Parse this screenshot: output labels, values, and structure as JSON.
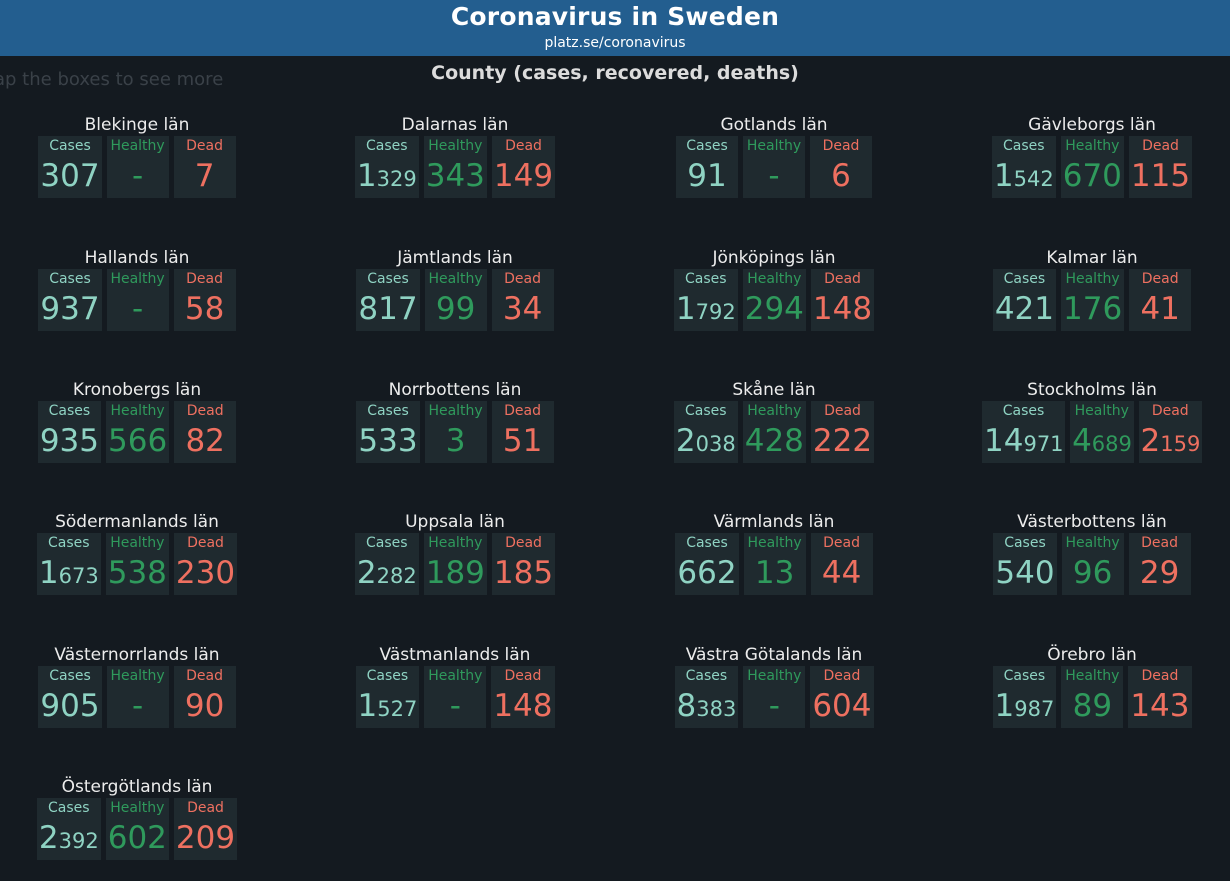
{
  "header": {
    "title": "Coronavirus in Sweden",
    "url": "platz.se/coronavirus"
  },
  "hint": "ap the boxes to see more",
  "section_title": "County (cases, recovered, deaths)",
  "labels": {
    "cases": "Cases",
    "healthy": "Healthy",
    "dead": "Dead"
  },
  "colors": {
    "header_bg": "#235e8f",
    "cases": "#8fd3c3",
    "healthy": "#2f9a5c",
    "dead": "#ee7060",
    "box_bg": "#1f2a2f"
  },
  "counties": [
    {
      "name": "Blekinge län",
      "cases": "307",
      "healthy": "-",
      "dead": "7"
    },
    {
      "name": "Dalarnas län",
      "cases": "1329",
      "healthy": "343",
      "dead": "149"
    },
    {
      "name": "Gotlands län",
      "cases": "91",
      "healthy": "-",
      "dead": "6"
    },
    {
      "name": "Gävleborgs län",
      "cases": "1542",
      "healthy": "670",
      "dead": "115"
    },
    {
      "name": "Hallands län",
      "cases": "937",
      "healthy": "-",
      "dead": "58"
    },
    {
      "name": "Jämtlands län",
      "cases": "817",
      "healthy": "99",
      "dead": "34"
    },
    {
      "name": "Jönköpings län",
      "cases": "1792",
      "healthy": "294",
      "dead": "148"
    },
    {
      "name": "Kalmar län",
      "cases": "421",
      "healthy": "176",
      "dead": "41"
    },
    {
      "name": "Kronobergs län",
      "cases": "935",
      "healthy": "566",
      "dead": "82"
    },
    {
      "name": "Norrbottens län",
      "cases": "533",
      "healthy": "3",
      "dead": "51"
    },
    {
      "name": "Skåne län",
      "cases": "2038",
      "healthy": "428",
      "dead": "222"
    },
    {
      "name": "Stockholms län",
      "cases": "14971",
      "healthy": "4689",
      "dead": "2159"
    },
    {
      "name": "Södermanlands län",
      "cases": "1673",
      "healthy": "538",
      "dead": "230"
    },
    {
      "name": "Uppsala län",
      "cases": "2282",
      "healthy": "189",
      "dead": "185"
    },
    {
      "name": "Värmlands län",
      "cases": "662",
      "healthy": "13",
      "dead": "44"
    },
    {
      "name": "Västerbottens län",
      "cases": "540",
      "healthy": "96",
      "dead": "29"
    },
    {
      "name": "Västernorrlands län",
      "cases": "905",
      "healthy": "-",
      "dead": "90"
    },
    {
      "name": "Västmanlands län",
      "cases": "1527",
      "healthy": "-",
      "dead": "148"
    },
    {
      "name": "Västra Götalands län",
      "cases": "8383",
      "healthy": "-",
      "dead": "604"
    },
    {
      "name": "Örebro län",
      "cases": "1987",
      "healthy": "89",
      "dead": "143"
    },
    {
      "name": "Östergötlands län",
      "cases": "2392",
      "healthy": "602",
      "dead": "209"
    }
  ]
}
